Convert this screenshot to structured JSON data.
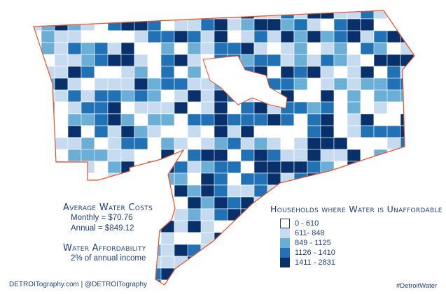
{
  "costs": {
    "title": "Average Water Costs",
    "monthly": "Monthly = $70.76",
    "annual": "Annual = $849.12"
  },
  "affordability": {
    "title": "Water Affordability",
    "value": "2% of annual income"
  },
  "legend": {
    "title": "Households where Water is Unaffordable",
    "classes": [
      {
        "label": "0 - 610",
        "color": "#ffffff"
      },
      {
        "label": "611- 848",
        "color": "#c6dbef"
      },
      {
        "label": "849 - 1125",
        "color": "#6baed6"
      },
      {
        "label": "1126 - 1410",
        "color": "#2171b5"
      },
      {
        "label": "1411 - 2831",
        "color": "#08306b"
      }
    ]
  },
  "credit": "DETROITography.com | @DETROITography",
  "hashtag": "#DetroitWater",
  "colors": {
    "boundary": "#f04e23",
    "text": "#1f3f7a"
  }
}
